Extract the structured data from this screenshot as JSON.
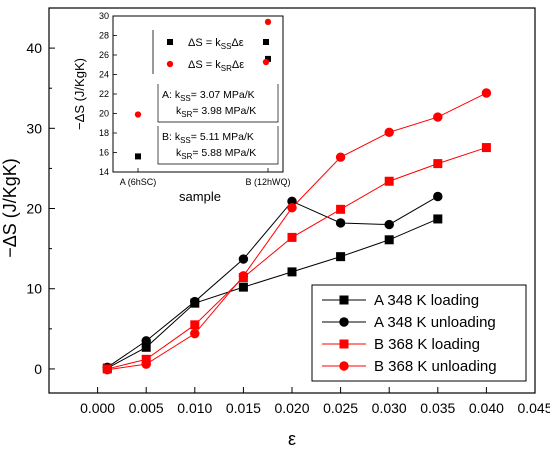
{
  "chart_data": [
    {
      "type": "line",
      "xlabel": "ε",
      "ylabel": "−ΔS (J/KgK)",
      "xlim": [
        -0.005,
        0.045
      ],
      "ylim": [
        -3,
        45
      ],
      "x_ticks": [
        "0.000",
        "0.005",
        "0.010",
        "0.015",
        "0.020",
        "0.025",
        "0.030",
        "0.035",
        "0.040",
        "0.045"
      ],
      "y_ticks": [
        "0",
        "10",
        "20",
        "30",
        "40"
      ],
      "legend_position": "lower-right",
      "series": [
        {
          "name": "A 348 K loading",
          "color": "#000000",
          "marker": "square",
          "x": [
            0.001,
            0.005,
            0.01,
            0.015,
            0.02,
            0.025,
            0.03,
            0.035
          ],
          "y": [
            0.1,
            2.7,
            8.2,
            10.2,
            12.1,
            14.0,
            16.1,
            18.7
          ]
        },
        {
          "name": "A 348 K unloading",
          "color": "#000000",
          "marker": "circle",
          "x": [
            0.001,
            0.005,
            0.01,
            0.015,
            0.02,
            0.025,
            0.03,
            0.035
          ],
          "y": [
            0.2,
            3.5,
            8.4,
            13.7,
            20.9,
            18.2,
            18.0,
            21.5
          ]
        },
        {
          "name": "B 368 K loading",
          "color": "#ff0000",
          "marker": "square",
          "x": [
            0.001,
            0.005,
            0.01,
            0.015,
            0.02,
            0.025,
            0.03,
            0.035,
            0.04
          ],
          "y": [
            0.0,
            1.2,
            5.5,
            11.4,
            16.4,
            19.9,
            23.4,
            25.6,
            27.6
          ]
        },
        {
          "name": "B 368 K unloading",
          "color": "#ff0000",
          "marker": "circle",
          "x": [
            0.001,
            0.005,
            0.01,
            0.015,
            0.02,
            0.025,
            0.03,
            0.035,
            0.04
          ],
          "y": [
            -0.1,
            0.6,
            4.4,
            11.6,
            20.1,
            26.4,
            29.5,
            31.4,
            34.4
          ]
        }
      ]
    },
    {
      "type": "scatter",
      "xlabel": "sample",
      "ylabel": "−ΔS (J/KgK)",
      "categories": [
        "A (6hSC)",
        "B (12hWQ)"
      ],
      "ylim": [
        14,
        30
      ],
      "y_ticks": [
        "14",
        "16",
        "18",
        "20",
        "22",
        "24",
        "26",
        "28",
        "30"
      ],
      "series": [
        {
          "label_parts": [
            "ΔS = k",
            "SS",
            "Δε"
          ],
          "color": "#000000",
          "marker": "square",
          "values": [
            15.6,
            25.6
          ]
        },
        {
          "label_parts": [
            "ΔS = k",
            "SR",
            "Δε"
          ],
          "color": "#ff0000",
          "marker": "circle",
          "values": [
            19.9,
            29.4
          ]
        }
      ],
      "annotations": [
        {
          "label": "A:",
          "k_ss": "3.07 MPa/K",
          "k_sr": "3.98 MPa/K"
        },
        {
          "label": "B:",
          "k_ss": "5.11 MPa/K",
          "k_sr": "5.88 MPa/K"
        }
      ]
    }
  ]
}
